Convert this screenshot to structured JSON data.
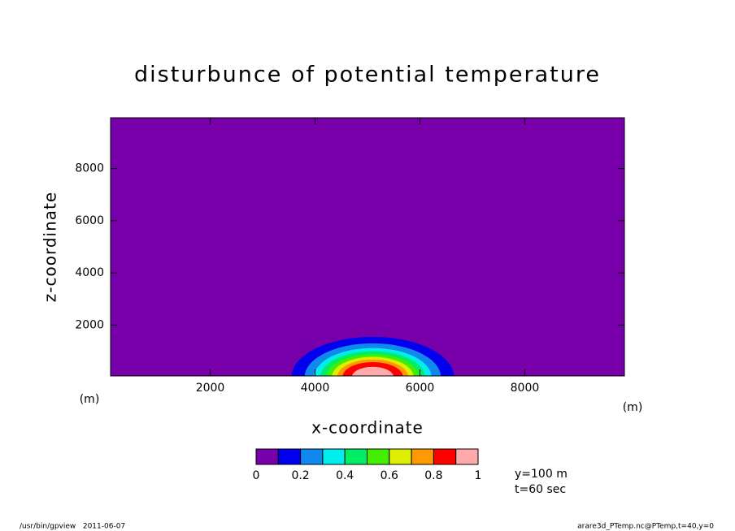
{
  "chart_data": {
    "type": "contour",
    "title": "disturbunce of potential temperature",
    "xlabel": "x-coordinate",
    "ylabel": "z-coordinate",
    "xunit": "(m)",
    "yunit": "(m)",
    "xlim": [
      100,
      9900
    ],
    "ylim": [
      50,
      9950
    ],
    "xticks": [
      2000,
      4000,
      6000,
      8000
    ],
    "yticks": [
      2000,
      4000,
      6000,
      8000
    ],
    "center": [
      5100,
      0
    ],
    "contours": [
      {
        "level": 0.1,
        "radius": 1550
      },
      {
        "level": 0.2,
        "radius": 1300
      },
      {
        "level": 0.3,
        "radius": 1120
      },
      {
        "level": 0.4,
        "radius": 1000
      },
      {
        "level": 0.5,
        "radius": 880
      },
      {
        "level": 0.6,
        "radius": 780
      },
      {
        "level": 0.7,
        "radius": 680
      },
      {
        "level": 0.8,
        "radius": 580
      },
      {
        "level": 0.9,
        "radius": 400
      }
    ],
    "colorbar": {
      "levels": [
        0,
        0.1,
        0.2,
        0.3,
        0.4,
        0.5,
        0.6,
        0.7,
        0.8,
        0.9,
        1
      ],
      "colors": [
        "#7700aa",
        "#0000ee",
        "#1188ee",
        "#00eeee",
        "#00ee66",
        "#44ee00",
        "#ddee00",
        "#ff9900",
        "#ff0000",
        "#ffaaaa"
      ],
      "ticks": [
        0,
        0.2,
        0.4,
        0.6,
        0.8,
        1
      ]
    },
    "annotations": [
      "y=100 m",
      "t=60 sec"
    ],
    "footer_left": "/usr/bin/gpview   2011-06-07",
    "footer_right": "arare3d_PTemp.nc@PTemp,t=40,y=0"
  }
}
